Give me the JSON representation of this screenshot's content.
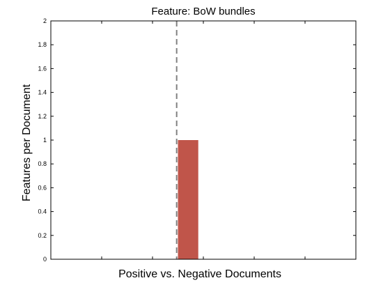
{
  "chart_data": {
    "type": "bar",
    "title": "Feature: BoW bundles",
    "xlabel": "Positive vs. Negative Documents",
    "ylabel": "Features per Document",
    "ylim": [
      0,
      2
    ],
    "xlim": [
      0,
      12
    ],
    "yticks": [
      "0",
      "0.2",
      "0.4",
      "0.6",
      "0.8",
      "1",
      "1.2",
      "1.4",
      "1.6",
      "1.8",
      "2"
    ],
    "xtick_positions": [
      2,
      4,
      6,
      8,
      10
    ],
    "bars": [
      {
        "x_start": 5,
        "x_end": 5.8,
        "value": 1
      }
    ],
    "divider_x": 4.95,
    "bar_color": "#c0554a",
    "divider_color": "#808080",
    "grid": false
  }
}
